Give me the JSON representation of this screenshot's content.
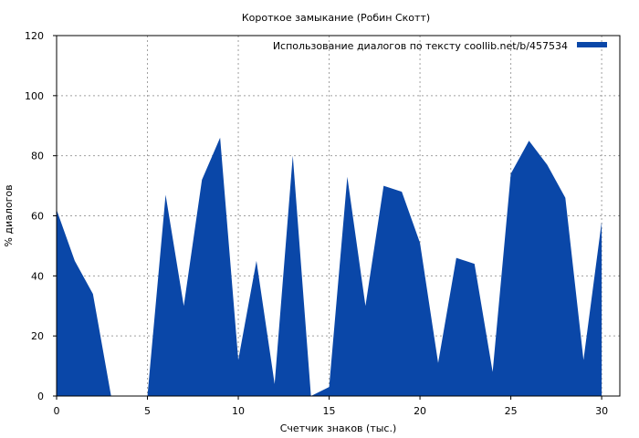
{
  "chart_data": {
    "type": "area",
    "title": "Короткое замыкание (Робин Скотт)",
    "xlabel": "Счетчик знаков (тыс.)",
    "ylabel": "% диалогов",
    "xlim": [
      0,
      31
    ],
    "ylim": [
      0,
      120
    ],
    "xticks": [
      0,
      5,
      10,
      15,
      20,
      25,
      30
    ],
    "yticks": [
      0,
      20,
      40,
      60,
      80,
      100,
      120
    ],
    "grid": true,
    "legend_position": "top-right",
    "series": [
      {
        "name": "Использование диалогов по тексту  coollib.net/b/457534",
        "color": "#0a47a8",
        "x": [
          0,
          1,
          2,
          3,
          4,
          5,
          6,
          7,
          8,
          9,
          10,
          11,
          12,
          13,
          14,
          15,
          16,
          17,
          18,
          19,
          20,
          21,
          22,
          23,
          24,
          25,
          26,
          27,
          28,
          29,
          30
        ],
        "values": [
          62,
          45,
          34,
          0,
          0,
          0,
          67,
          30,
          72,
          86,
          12,
          45,
          4,
          80,
          0,
          3,
          73,
          30,
          70,
          68,
          51,
          11,
          46,
          44,
          8,
          74,
          85,
          77,
          66,
          12,
          58
        ]
      }
    ]
  }
}
